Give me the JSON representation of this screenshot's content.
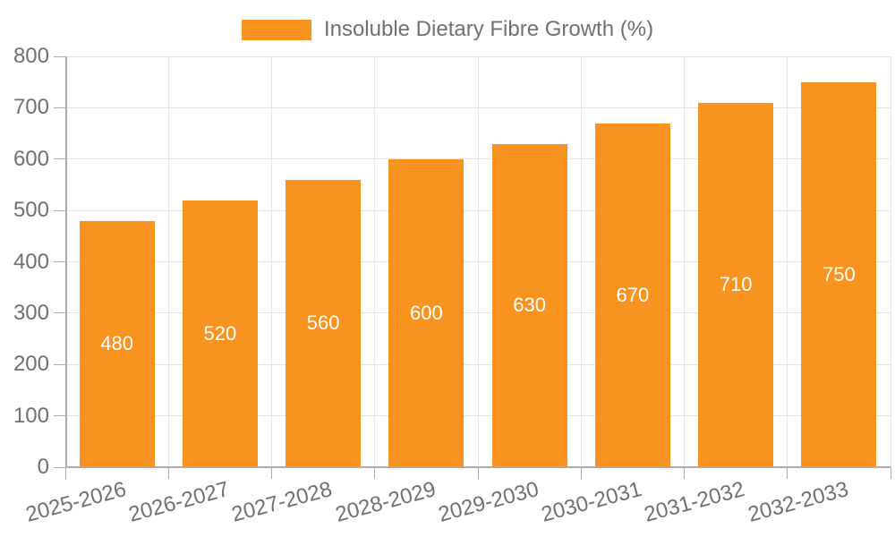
{
  "legend": {
    "label": "Insoluble Dietary Fibre Growth (%)"
  },
  "colors": {
    "bar": "#F7931E",
    "grid": "#E5E5E5",
    "axis": "#ACACAC",
    "text": "#707070",
    "value_label": "#FFFFFF",
    "background": "#FFFFFF"
  },
  "chart_data": {
    "type": "bar",
    "title": "",
    "xlabel": "",
    "ylabel": "",
    "categories": [
      "2025-2026",
      "2026-2027",
      "2027-2028",
      "2028-2029",
      "2029-2030",
      "2030-2031",
      "2031-2032",
      "2032-2033"
    ],
    "series": [
      {
        "name": "Insoluble Dietary Fibre Growth (%)",
        "values": [
          480,
          520,
          560,
          600,
          630,
          670,
          710,
          750
        ]
      }
    ],
    "ylim": [
      0,
      800
    ],
    "ytick_step": 100,
    "yticks": [
      0,
      100,
      200,
      300,
      400,
      500,
      600,
      700,
      800
    ],
    "grid": true,
    "legend_position": "top",
    "bar_value_labels": true
  }
}
